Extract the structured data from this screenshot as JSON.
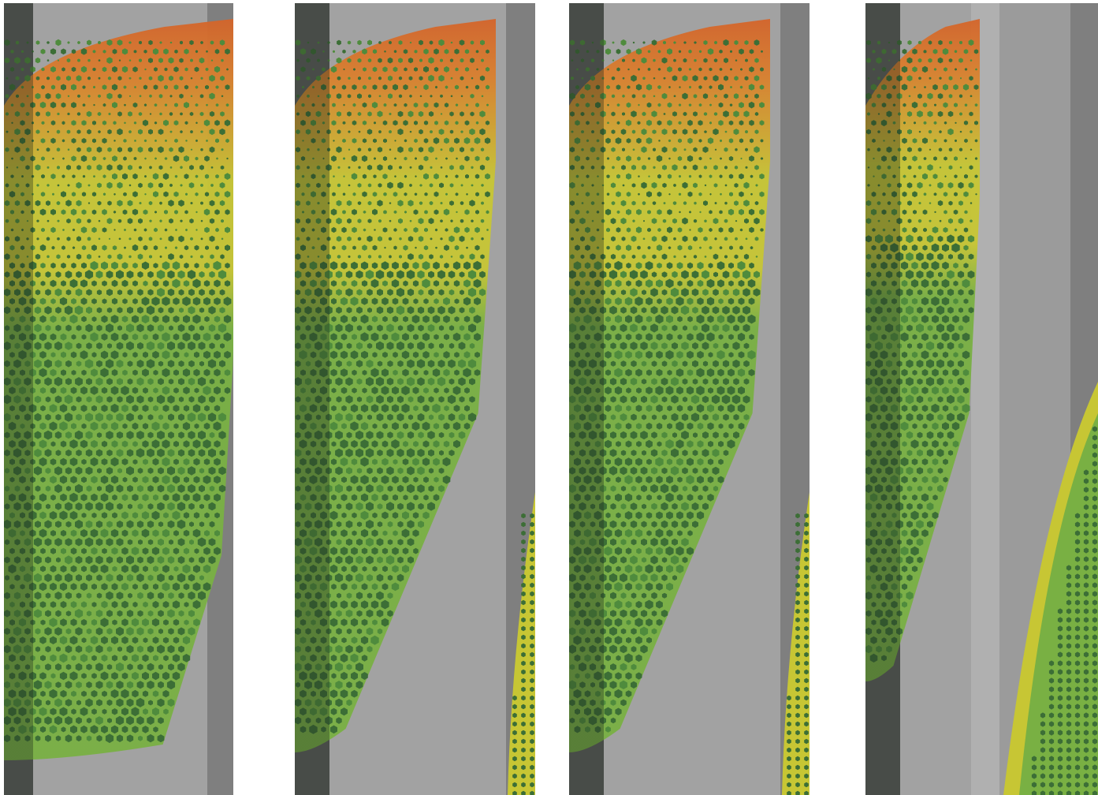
{
  "figure": {
    "panel_count": 4,
    "panels": [
      {
        "id": "panel-1",
        "variant": "full"
      },
      {
        "id": "panel-2",
        "variant": "with-right-sliver"
      },
      {
        "id": "panel-3",
        "variant": "with-right-sliver"
      },
      {
        "id": "panel-4",
        "variant": "split-wedge"
      }
    ]
  },
  "colors": {
    "background": "#ffffff",
    "track_light": "#a2a2a2",
    "track_mid": "#9b9b9b",
    "track_dark": "#5e5e5e",
    "track_edge": "#7f7f7f",
    "dot_dark_green": "#3c6e36",
    "dot_mid_green": "#4f8b3d",
    "fill_light_green": "#79b043",
    "band_yellow": "#c7c634",
    "band_orange": "#d9802e",
    "band_red_orange": "#d4642a"
  },
  "icons": [
    "hexagon-dot-icon"
  ]
}
